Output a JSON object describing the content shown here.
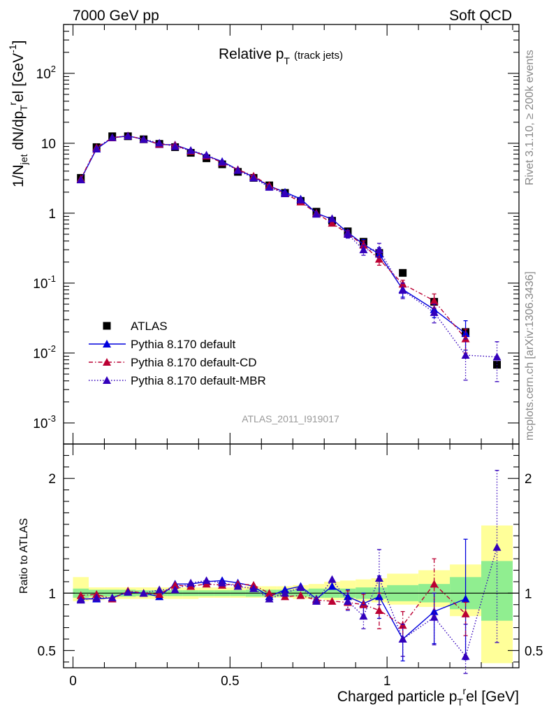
{
  "header": {
    "left": "7000 GeV pp",
    "right": "Soft QCD"
  },
  "side_text": {
    "upper": "Rivet 3.1.10, ≥ 200k events",
    "lower": "mcplots.cern.ch [arXiv:1306.3436]"
  },
  "chart_data": [
    {
      "panel": "main",
      "type": "scatter",
      "title": "Relative p_T (track jets)",
      "title_main": "Relative p",
      "title_sub": "T",
      "title_note": "(track jets)",
      "ylabel": "1/N_jet dN/dp_T^rel [GeV^-1]",
      "ylabel_parts": {
        "a": "1/N",
        "b": "jet",
        "c": " dN/dp",
        "d": "T",
        "e": "r",
        "f": "el [GeV",
        "g": "-1",
        "h": "]"
      },
      "yscale": "log",
      "ylim": [
        0.0005,
        500
      ],
      "xlim": [
        -0.03,
        1.42
      ],
      "yticks": [
        {
          "v": 0.001,
          "base": "10",
          "exp": "-3"
        },
        {
          "v": 0.01,
          "base": "10",
          "exp": "-2"
        },
        {
          "v": 0.1,
          "base": "10",
          "exp": "-1"
        },
        {
          "v": 1,
          "base": "1",
          "exp": ""
        },
        {
          "v": 10,
          "base": "10",
          "exp": ""
        },
        {
          "v": 100,
          "base": "10",
          "exp": "2"
        }
      ],
      "watermark": "ATLAS_2011_I919017",
      "legend": [
        {
          "name": "ATLAS",
          "color": "#000000",
          "marker": "square",
          "line": "none"
        },
        {
          "name": "Pythia 8.170 default",
          "color": "#0000dd",
          "marker": "triangle",
          "line": "solid"
        },
        {
          "name": "Pythia 8.170 default-CD",
          "color": "#bb0033",
          "marker": "triangle",
          "line": "dashdot"
        },
        {
          "name": "Pythia 8.170 default-MBR",
          "color": "#3300bb",
          "marker": "triangle",
          "line": "dotted"
        }
      ],
      "bins": [
        [
          0,
          0.05
        ],
        [
          0.05,
          0.1
        ],
        [
          0.1,
          0.15
        ],
        [
          0.15,
          0.2
        ],
        [
          0.2,
          0.25
        ],
        [
          0.25,
          0.3
        ],
        [
          0.3,
          0.35
        ],
        [
          0.35,
          0.4
        ],
        [
          0.4,
          0.45
        ],
        [
          0.45,
          0.5
        ],
        [
          0.5,
          0.55
        ],
        [
          0.55,
          0.6
        ],
        [
          0.6,
          0.65
        ],
        [
          0.65,
          0.7
        ],
        [
          0.7,
          0.75
        ],
        [
          0.75,
          0.8
        ],
        [
          0.8,
          0.85
        ],
        [
          0.85,
          0.9
        ],
        [
          0.9,
          0.95
        ],
        [
          0.95,
          1.0
        ],
        [
          1.0,
          1.1
        ],
        [
          1.1,
          1.2
        ],
        [
          1.2,
          1.3
        ],
        [
          1.3,
          1.4
        ]
      ],
      "x": [
        0.025,
        0.075,
        0.125,
        0.175,
        0.225,
        0.275,
        0.325,
        0.375,
        0.425,
        0.475,
        0.525,
        0.575,
        0.625,
        0.675,
        0.725,
        0.775,
        0.825,
        0.875,
        0.925,
        0.975,
        1.05,
        1.15,
        1.25,
        1.35
      ],
      "series": [
        {
          "name": "ATLAS",
          "values": [
            3.2,
            8.8,
            12.6,
            12.6,
            11.4,
            9.8,
            8.8,
            7.3,
            6.1,
            5.0,
            3.9,
            3.2,
            2.5,
            1.95,
            1.5,
            1.05,
            0.78,
            0.55,
            0.39,
            0.27,
            0.14,
            0.054,
            0.02,
            0.0068
          ]
        },
        {
          "name": "Pythia 8.170 default",
          "values": [
            3.05,
            8.3,
            12.0,
            12.7,
            11.4,
            9.6,
            9.5,
            7.9,
            6.6,
            5.5,
            4.2,
            3.3,
            2.45,
            2.0,
            1.6,
            1.0,
            0.82,
            0.53,
            0.36,
            0.26,
            0.081,
            0.042,
            0.019,
            null
          ]
        },
        {
          "name": "Pythia 8.170 default-CD",
          "values": [
            3.1,
            8.7,
            12.0,
            12.8,
            11.4,
            9.7,
            9.4,
            7.7,
            6.6,
            5.3,
            4.2,
            3.4,
            2.5,
            1.9,
            1.45,
            1.0,
            0.72,
            0.51,
            0.35,
            0.22,
            0.097,
            0.056,
            0.016,
            null
          ]
        },
        {
          "name": "Pythia 8.170 default-MBR",
          "values": [
            3.0,
            8.4,
            12.1,
            12.7,
            11.4,
            10.1,
            9.0,
            7.9,
            6.8,
            5.4,
            4.1,
            3.2,
            2.35,
            1.9,
            1.55,
            0.97,
            0.84,
            0.5,
            0.3,
            0.3,
            0.079,
            0.038,
            0.0093,
            0.0088
          ]
        }
      ],
      "yerr_high": {
        "Pythia 8.170 default": [
          null,
          null,
          null,
          null,
          null,
          null,
          null,
          null,
          null,
          null,
          null,
          null,
          null,
          null,
          null,
          null,
          null,
          0.57,
          0.42,
          0.32,
          0.1,
          0.055,
          0.029,
          null
        ],
        "Pythia 8.170 default-CD": [
          null,
          null,
          null,
          null,
          null,
          null,
          null,
          null,
          null,
          null,
          null,
          null,
          null,
          null,
          null,
          null,
          null,
          0.56,
          0.4,
          0.27,
          0.11,
          0.07,
          0.022,
          null
        ],
        "Pythia 8.170 default-MBR": [
          null,
          null,
          null,
          null,
          null,
          null,
          null,
          null,
          null,
          null,
          null,
          null,
          null,
          null,
          null,
          null,
          null,
          0.55,
          0.35,
          0.37,
          0.1,
          0.05,
          0.016,
          0.0145
        ]
      },
      "yerr_low": {
        "Pythia 8.170 default": [
          null,
          null,
          null,
          null,
          null,
          null,
          null,
          null,
          null,
          null,
          null,
          null,
          null,
          null,
          null,
          null,
          null,
          0.49,
          0.31,
          0.21,
          0.063,
          0.032,
          0.011,
          null
        ],
        "Pythia 8.170 default-CD": [
          null,
          null,
          null,
          null,
          null,
          null,
          null,
          null,
          null,
          null,
          null,
          null,
          null,
          null,
          null,
          null,
          null,
          0.46,
          0.3,
          0.18,
          0.08,
          0.044,
          0.01,
          null
        ],
        "Pythia 8.170 default-MBR": [
          null,
          null,
          null,
          null,
          null,
          null,
          null,
          null,
          null,
          null,
          null,
          null,
          null,
          null,
          null,
          null,
          null,
          0.44,
          0.25,
          0.23,
          0.06,
          0.027,
          0.0041,
          0.0039
        ]
      }
    },
    {
      "panel": "ratio",
      "type": "scatter",
      "ylabel": "Ratio to ATLAS",
      "xlabel": "Charged particle p_T^rel [GeV]",
      "xlabel_parts": {
        "a": "Charged particle p",
        "b": "T",
        "c": "r",
        "d": "el [GeV]"
      },
      "ylim": [
        0.35,
        2.3
      ],
      "xlim": [
        -0.03,
        1.42
      ],
      "yticks": [
        0.5,
        1,
        2
      ],
      "ytick_labels": [
        "0.5",
        "1",
        "2"
      ],
      "xticks": [
        0,
        0.5,
        1
      ],
      "xtick_labels": [
        "0",
        "0.5",
        "1"
      ],
      "band_stat": [
        [
          0.96,
          1.04
        ],
        [
          0.97,
          1.03
        ],
        [
          0.97,
          1.03
        ],
        [
          0.97,
          1.03
        ],
        [
          0.975,
          1.025
        ],
        [
          0.975,
          1.025
        ],
        [
          0.975,
          1.025
        ],
        [
          0.975,
          1.025
        ],
        [
          0.975,
          1.025
        ],
        [
          0.975,
          1.025
        ],
        [
          0.975,
          1.025
        ],
        [
          0.97,
          1.03
        ],
        [
          0.97,
          1.03
        ],
        [
          0.97,
          1.03
        ],
        [
          0.97,
          1.03
        ],
        [
          0.96,
          1.04
        ],
        [
          0.96,
          1.04
        ],
        [
          0.96,
          1.04
        ],
        [
          0.95,
          1.05
        ],
        [
          0.95,
          1.05
        ],
        [
          0.93,
          1.07
        ],
        [
          0.92,
          1.08
        ],
        [
          0.86,
          1.14
        ],
        [
          0.76,
          1.28
        ]
      ],
      "band_total": [
        [
          0.93,
          1.14
        ],
        [
          0.94,
          1.05
        ],
        [
          0.95,
          1.05
        ],
        [
          0.95,
          1.05
        ],
        [
          0.95,
          1.05
        ],
        [
          0.95,
          1.05
        ],
        [
          0.95,
          1.05
        ],
        [
          0.95,
          1.05
        ],
        [
          0.96,
          1.05
        ],
        [
          0.96,
          1.05
        ],
        [
          0.96,
          1.05
        ],
        [
          0.96,
          1.06
        ],
        [
          0.96,
          1.06
        ],
        [
          0.96,
          1.06
        ],
        [
          0.95,
          1.07
        ],
        [
          0.95,
          1.08
        ],
        [
          0.94,
          1.1
        ],
        [
          0.94,
          1.11
        ],
        [
          0.93,
          1.12
        ],
        [
          0.92,
          1.13
        ],
        [
          0.9,
          1.17
        ],
        [
          0.88,
          1.2
        ],
        [
          0.8,
          1.25
        ],
        [
          0.39,
          1.59
        ]
      ],
      "series": [
        {
          "name": "Pythia 8.170 default",
          "values": [
            0.95,
            0.95,
            0.96,
            1.01,
            1.0,
            0.97,
            1.08,
            1.08,
            1.1,
            1.11,
            1.09,
            1.06,
            0.97,
            1.03,
            1.06,
            0.95,
            1.06,
            0.97,
            0.91,
            0.97,
            0.6,
            0.84,
            0.95,
            null
          ]
        },
        {
          "name": "Pythia 8.170 default-CD",
          "values": [
            0.98,
            0.99,
            0.95,
            1.02,
            1.0,
            0.99,
            1.07,
            1.06,
            1.08,
            1.07,
            1.08,
            1.07,
            1.0,
            0.97,
            0.98,
            0.94,
            0.93,
            0.92,
            0.9,
            0.85,
            0.72,
            1.08,
            0.82,
            null
          ]
        },
        {
          "name": "Pythia 8.170 default-MBR",
          "values": [
            0.94,
            0.96,
            0.96,
            1.01,
            1.0,
            1.03,
            1.03,
            1.09,
            1.11,
            1.09,
            1.06,
            1.04,
            0.95,
            1.0,
            1.05,
            0.93,
            1.12,
            0.93,
            0.8,
            1.13,
            0.6,
            0.79,
            0.45,
            1.4
          ]
        }
      ],
      "yerr_high": {
        "Pythia 8.170 default": [
          null,
          null,
          null,
          null,
          null,
          null,
          null,
          null,
          null,
          null,
          null,
          null,
          null,
          null,
          null,
          null,
          null,
          1.03,
          1.0,
          1.15,
          0.73,
          1.0,
          1.47,
          null
        ],
        "Pythia 8.170 default-CD": [
          null,
          null,
          null,
          null,
          null,
          null,
          null,
          null,
          null,
          null,
          null,
          null,
          null,
          null,
          null,
          null,
          null,
          1.02,
          0.99,
          1.0,
          0.84,
          1.3,
          0.92,
          null
        ],
        "Pythia 8.170 default-MBR": [
          null,
          null,
          null,
          null,
          null,
          null,
          null,
          null,
          null,
          null,
          null,
          null,
          null,
          null,
          null,
          null,
          null,
          1.0,
          0.9,
          1.38,
          0.73,
          1.0,
          0.73,
          2.07
        ]
      },
      "yerr_low": {
        "Pythia 8.170 default": [
          null,
          null,
          null,
          null,
          null,
          null,
          null,
          null,
          null,
          null,
          null,
          null,
          null,
          null,
          null,
          null,
          null,
          0.9,
          0.81,
          0.78,
          0.41,
          0.56,
          0.42,
          null
        ],
        "Pythia 8.170 default-CD": [
          null,
          null,
          null,
          null,
          null,
          null,
          null,
          null,
          null,
          null,
          null,
          null,
          null,
          null,
          null,
          null,
          null,
          0.86,
          0.78,
          0.69,
          0.6,
          0.8,
          0.63,
          null
        ],
        "Pythia 8.170 default-MBR": [
          null,
          null,
          null,
          null,
          null,
          null,
          null,
          null,
          null,
          null,
          null,
          null,
          null,
          null,
          null,
          null,
          null,
          0.85,
          0.69,
          0.9,
          0.45,
          0.55,
          0.3,
          0.57
        ]
      },
      "colors": {
        "stat": "#90ee90",
        "total": "#ffff99"
      }
    }
  ]
}
